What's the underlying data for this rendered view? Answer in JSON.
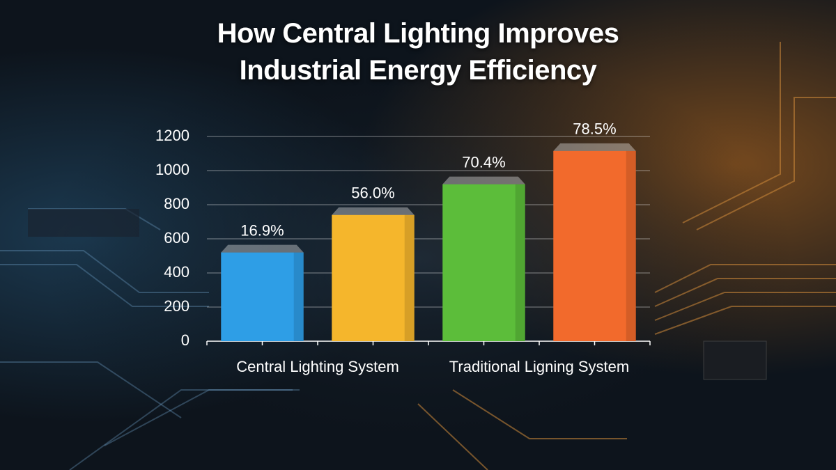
{
  "chart_data": {
    "type": "bar",
    "title": "How Central Lighting Improves Industrial Energy Efficiency",
    "categories": [
      "Central Lighting System",
      null,
      "Traditional Ligning System",
      null
    ],
    "values": [
      520,
      740,
      920,
      1115
    ],
    "annotations": [
      "16.9%",
      "56.0%",
      "70.4%",
      "78.5%"
    ],
    "colors": [
      "#2e9ee6",
      "#f5b62c",
      "#5cbd3a",
      "#f26a2c"
    ],
    "ylim": [
      0,
      1200
    ],
    "yticks": [
      0,
      200,
      400,
      600,
      800,
      1000,
      1200
    ],
    "grid": true
  }
}
